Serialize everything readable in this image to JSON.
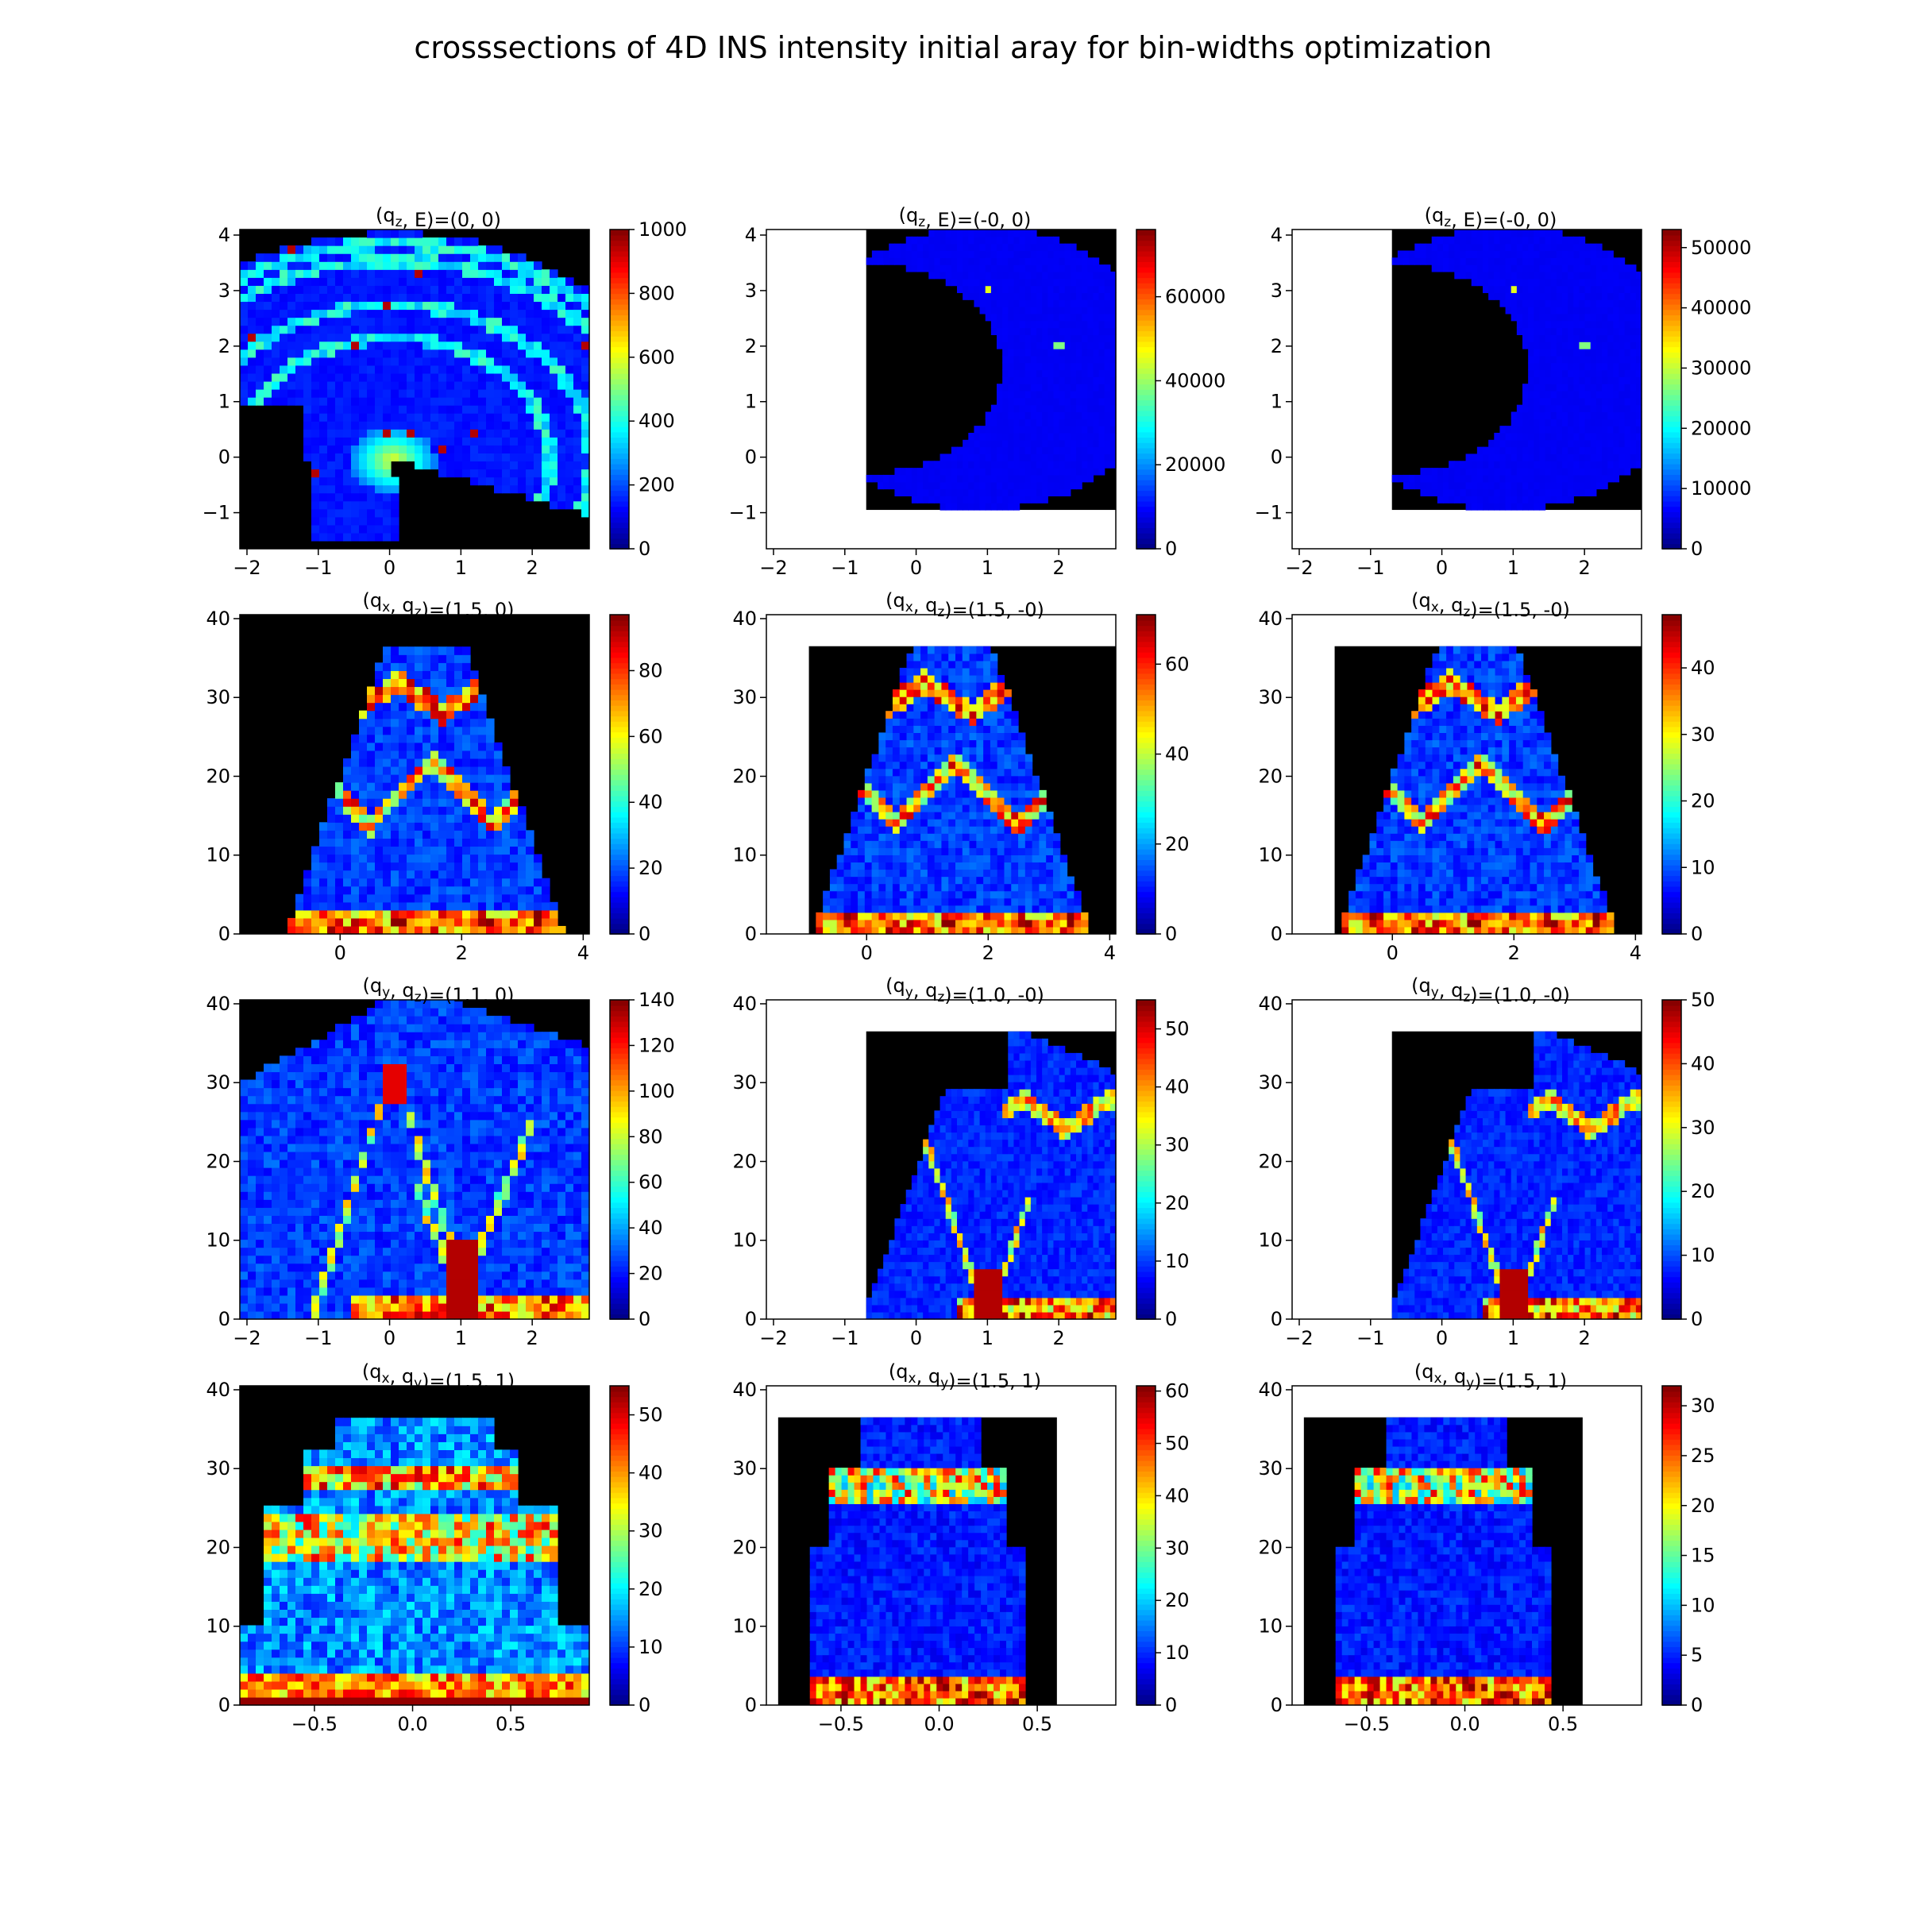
{
  "figure": {
    "title": "crosssections of 4D INS intensity initial aray for bin-widths optimization"
  },
  "colormap": "jet",
  "chart_data": [
    {
      "type": "heatmap",
      "row": 0,
      "col": 0,
      "title": "(q₂, E)=(0, 0)",
      "title_sub": "z",
      "title_main": "q",
      "title_second": "E",
      "title_values": "=(0, 0)",
      "xlim": [
        -2.1,
        2.8
      ],
      "ylim": [
        -1.65,
        4.1
      ],
      "xticks": [
        "−2",
        "−1",
        "0",
        "1",
        "2"
      ],
      "xtick_values": [
        -2,
        -1,
        0,
        1,
        2
      ],
      "yticks": [
        "−1",
        "0",
        "1",
        "2",
        "3",
        "4"
      ],
      "ytick_values": [
        -1,
        0,
        1,
        2,
        3,
        4
      ],
      "colorbar": {
        "max": 1000,
        "ticks": [
          "0",
          "200",
          "400",
          "600",
          "800",
          "1000"
        ],
        "tick_values": [
          0,
          200,
          400,
          600,
          800,
          1000
        ]
      },
      "data_region": [
        -2.1,
        2.8,
        -1.65,
        4.1
      ],
      "pattern": "sliceA"
    },
    {
      "type": "heatmap",
      "row": 0,
      "col": 1,
      "title_main": "q",
      "title_sub": "z",
      "title_second": "E",
      "title_values": "=(-0, 0)",
      "xlim": [
        -2.1,
        2.8
      ],
      "ylim": [
        -1.65,
        4.1
      ],
      "xticks": [
        "−2",
        "−1",
        "0",
        "1",
        "2"
      ],
      "xtick_values": [
        -2,
        -1,
        0,
        1,
        2
      ],
      "yticks": [
        "−1",
        "0",
        "1",
        "2",
        "3",
        "4"
      ],
      "ytick_values": [
        -1,
        0,
        1,
        2,
        3,
        4
      ],
      "colorbar": {
        "max": 76000,
        "ticks": [
          "0",
          "20000",
          "40000",
          "60000"
        ],
        "tick_values": [
          0,
          20000,
          40000,
          60000
        ]
      },
      "data_region": [
        -0.7,
        2.8,
        -0.95,
        4.1
      ],
      "pattern": "sliceB"
    },
    {
      "type": "heatmap",
      "row": 0,
      "col": 2,
      "title_main": "q",
      "title_sub": "z",
      "title_second": "E",
      "title_values": "=(-0, 0)",
      "xlim": [
        -2.1,
        2.8
      ],
      "ylim": [
        -1.65,
        4.1
      ],
      "xticks": [
        "−2",
        "−1",
        "0",
        "1",
        "2"
      ],
      "xtick_values": [
        -2,
        -1,
        0,
        1,
        2
      ],
      "yticks": [
        "−1",
        "0",
        "1",
        "2",
        "3",
        "4"
      ],
      "ytick_values": [
        -1,
        0,
        1,
        2,
        3,
        4
      ],
      "colorbar": {
        "max": 53000,
        "ticks": [
          "0",
          "10000",
          "20000",
          "30000",
          "40000",
          "50000"
        ],
        "tick_values": [
          0,
          10000,
          20000,
          30000,
          40000,
          50000
        ]
      },
      "data_region": [
        -0.7,
        2.8,
        -0.95,
        4.1
      ],
      "pattern": "sliceB"
    },
    {
      "type": "heatmap",
      "row": 1,
      "col": 0,
      "title_main": "q",
      "title_sub": "x",
      "title_second": "q",
      "title_second_sub": "z",
      "title_values": "=(1.5, 0)",
      "xlim": [
        -1.65,
        4.1
      ],
      "ylim": [
        0,
        40.5
      ],
      "xticks": [
        "0",
        "2",
        "4"
      ],
      "xtick_values": [
        0,
        2,
        4
      ],
      "yticks": [
        "0",
        "10",
        "20",
        "30",
        "40"
      ],
      "ytick_values": [
        0,
        10,
        20,
        30,
        40
      ],
      "colorbar": {
        "max": 97,
        "ticks": [
          "0",
          "20",
          "40",
          "60",
          "80"
        ],
        "tick_values": [
          0,
          20,
          40,
          60,
          80
        ]
      },
      "data_region": [
        -1.65,
        4.1,
        0,
        40.5
      ],
      "pattern": "dispX"
    },
    {
      "type": "heatmap",
      "row": 1,
      "col": 1,
      "title_main": "q",
      "title_sub": "x",
      "title_second": "q",
      "title_second_sub": "z",
      "title_values": "=(1.5, -0)",
      "xlim": [
        -1.65,
        4.1
      ],
      "ylim": [
        0,
        40.5
      ],
      "xticks": [
        "0",
        "2",
        "4"
      ],
      "xtick_values": [
        0,
        2,
        4
      ],
      "yticks": [
        "0",
        "10",
        "20",
        "30",
        "40"
      ],
      "ytick_values": [
        0,
        10,
        20,
        30,
        40
      ],
      "colorbar": {
        "max": 71,
        "ticks": [
          "0",
          "20",
          "40",
          "60"
        ],
        "tick_values": [
          0,
          20,
          40,
          60
        ]
      },
      "data_region": [
        -0.95,
        4.1,
        0,
        36.5
      ],
      "pattern": "dispX"
    },
    {
      "type": "heatmap",
      "row": 1,
      "col": 2,
      "title_main": "q",
      "title_sub": "x",
      "title_second": "q",
      "title_second_sub": "z",
      "title_values": "=(1.5, -0)",
      "xlim": [
        -1.65,
        4.1
      ],
      "ylim": [
        0,
        40.5
      ],
      "xticks": [
        "0",
        "2",
        "4"
      ],
      "xtick_values": [
        0,
        2,
        4
      ],
      "yticks": [
        "0",
        "10",
        "20",
        "30",
        "40"
      ],
      "ytick_values": [
        0,
        10,
        20,
        30,
        40
      ],
      "colorbar": {
        "max": 48,
        "ticks": [
          "0",
          "10",
          "20",
          "30",
          "40"
        ],
        "tick_values": [
          0,
          10,
          20,
          30,
          40
        ]
      },
      "data_region": [
        -0.95,
        4.1,
        0,
        36.5
      ],
      "pattern": "dispX"
    },
    {
      "type": "heatmap",
      "row": 2,
      "col": 0,
      "title_main": "q",
      "title_sub": "y",
      "title_second": "q",
      "title_second_sub": "z",
      "title_values": "=(1.1, 0)",
      "xlim": [
        -2.1,
        2.8
      ],
      "ylim": [
        0,
        40.5
      ],
      "xticks": [
        "−2",
        "−1",
        "0",
        "1",
        "2"
      ],
      "xtick_values": [
        -2,
        -1,
        0,
        1,
        2
      ],
      "yticks": [
        "0",
        "10",
        "20",
        "30",
        "40"
      ],
      "ytick_values": [
        0,
        10,
        20,
        30,
        40
      ],
      "colorbar": {
        "max": 140,
        "ticks": [
          "0",
          "20",
          "40",
          "60",
          "80",
          "100",
          "120",
          "140"
        ],
        "tick_values": [
          0,
          20,
          40,
          60,
          80,
          100,
          120,
          140
        ]
      },
      "data_region": [
        -2.1,
        2.8,
        0,
        40.5
      ],
      "pattern": "dispY1"
    },
    {
      "type": "heatmap",
      "row": 2,
      "col": 1,
      "title_main": "q",
      "title_sub": "y",
      "title_second": "q",
      "title_second_sub": "z",
      "title_values": "=(1.0, -0)",
      "xlim": [
        -2.1,
        2.8
      ],
      "ylim": [
        0,
        40.5
      ],
      "xticks": [
        "−2",
        "−1",
        "0",
        "1",
        "2"
      ],
      "xtick_values": [
        -2,
        -1,
        0,
        1,
        2
      ],
      "yticks": [
        "0",
        "10",
        "20",
        "30",
        "40"
      ],
      "ytick_values": [
        0,
        10,
        20,
        30,
        40
      ],
      "colorbar": {
        "max": 55,
        "ticks": [
          "0",
          "10",
          "20",
          "30",
          "40",
          "50"
        ],
        "tick_values": [
          0,
          10,
          20,
          30,
          40,
          50
        ]
      },
      "data_region": [
        -0.7,
        2.8,
        0,
        36.5
      ],
      "pattern": "dispY2"
    },
    {
      "type": "heatmap",
      "row": 2,
      "col": 2,
      "title_main": "q",
      "title_sub": "y",
      "title_second": "q",
      "title_second_sub": "z",
      "title_values": "=(1.0, -0)",
      "xlim": [
        -2.1,
        2.8
      ],
      "ylim": [
        0,
        40.5
      ],
      "xticks": [
        "−2",
        "−1",
        "0",
        "1",
        "2"
      ],
      "xtick_values": [
        -2,
        -1,
        0,
        1,
        2
      ],
      "yticks": [
        "0",
        "10",
        "20",
        "30",
        "40"
      ],
      "ytick_values": [
        0,
        10,
        20,
        30,
        40
      ],
      "colorbar": {
        "max": 50,
        "ticks": [
          "0",
          "10",
          "20",
          "30",
          "40",
          "50"
        ],
        "tick_values": [
          0,
          10,
          20,
          30,
          40,
          50
        ]
      },
      "data_region": [
        -0.7,
        2.8,
        0,
        36.5
      ],
      "pattern": "dispY2"
    },
    {
      "type": "heatmap",
      "row": 3,
      "col": 0,
      "title_main": "q",
      "title_sub": "x",
      "title_second": "q",
      "title_second_sub": "y",
      "title_values": "=(1.5, 1)",
      "xlim": [
        -0.88,
        0.9
      ],
      "ylim": [
        0,
        40.5
      ],
      "xticks": [
        "−0.5",
        "0.0",
        "0.5"
      ],
      "xtick_values": [
        -0.5,
        0,
        0.5
      ],
      "yticks": [
        "0",
        "10",
        "20",
        "30",
        "40"
      ],
      "ytick_values": [
        0,
        10,
        20,
        30,
        40
      ],
      "colorbar": {
        "max": 55,
        "ticks": [
          "0",
          "10",
          "20",
          "30",
          "40",
          "50"
        ],
        "tick_values": [
          0,
          10,
          20,
          30,
          40,
          50
        ]
      },
      "data_region": [
        -0.88,
        0.9,
        0,
        40.5
      ],
      "pattern": "qxqy"
    },
    {
      "type": "heatmap",
      "row": 3,
      "col": 1,
      "title_main": "q",
      "title_sub": "x",
      "title_second": "q",
      "title_second_sub": "y",
      "title_values": "=(1.5, 1)",
      "xlim": [
        -0.88,
        0.9
      ],
      "ylim": [
        0,
        40.5
      ],
      "xticks": [
        "−0.5",
        "0.0",
        "0.5"
      ],
      "xtick_values": [
        -0.5,
        0,
        0.5
      ],
      "yticks": [
        "0",
        "10",
        "20",
        "30",
        "40"
      ],
      "ytick_values": [
        0,
        10,
        20,
        30,
        40
      ],
      "colorbar": {
        "max": 61,
        "ticks": [
          "0",
          "10",
          "20",
          "30",
          "40",
          "50",
          "60"
        ],
        "tick_values": [
          0,
          10,
          20,
          30,
          40,
          50,
          60
        ]
      },
      "data_region": [
        -0.82,
        0.6,
        0,
        36.5
      ],
      "pattern": "qxqy2"
    },
    {
      "type": "heatmap",
      "row": 3,
      "col": 2,
      "title_main": "q",
      "title_sub": "x",
      "title_second": "q",
      "title_second_sub": "y",
      "title_values": "=(1.5, 1)",
      "xlim": [
        -0.88,
        0.9
      ],
      "ylim": [
        0,
        40.5
      ],
      "xticks": [
        "−0.5",
        "0.0",
        "0.5"
      ],
      "xtick_values": [
        -0.5,
        0,
        0.5
      ],
      "yticks": [
        "0",
        "10",
        "20",
        "30",
        "40"
      ],
      "ytick_values": [
        0,
        10,
        20,
        30,
        40
      ],
      "colorbar": {
        "max": 32,
        "ticks": [
          "0",
          "5",
          "10",
          "15",
          "20",
          "25",
          "30"
        ],
        "tick_values": [
          0,
          5,
          10,
          15,
          20,
          25,
          30
        ]
      },
      "data_region": [
        -0.82,
        0.6,
        0,
        36.5
      ],
      "pattern": "qxqy2"
    }
  ]
}
